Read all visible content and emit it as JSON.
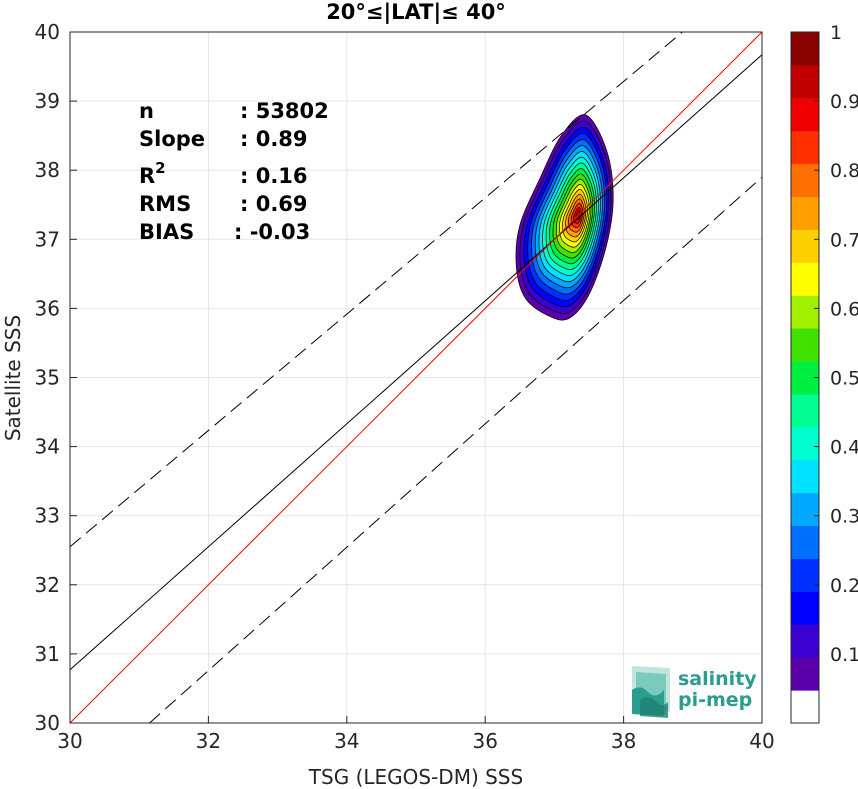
{
  "chart_data": {
    "type": "contour-scatter",
    "title": "20°≤|LAT|≤ 40°",
    "xlabel": "TSG (LEGOS-DM) SSS",
    "ylabel": "Satellite SSS",
    "xlim": [
      30,
      40
    ],
    "ylim": [
      30,
      40
    ],
    "xticks": [
      "30",
      "32",
      "34",
      "36",
      "38",
      "40"
    ],
    "yticks": [
      "30",
      "31",
      "32",
      "33",
      "34",
      "35",
      "36",
      "37",
      "38",
      "39",
      "40"
    ],
    "grid": true,
    "stats": [
      {
        "label": "n",
        "value": ": 53802"
      },
      {
        "label": "Slope",
        "value": ": 0.89"
      },
      {
        "label": "R",
        "sup": "2",
        "value": ": 0.16"
      },
      {
        "label": "RMS",
        "value": ": 0.69"
      },
      {
        "label": "BIAS",
        "value": ": -0.03"
      }
    ],
    "reference_lines": {
      "identity": {
        "x": [
          30,
          40
        ],
        "y": [
          30,
          40
        ],
        "color": "#ff0000"
      },
      "regression": {
        "x": [
          30,
          40
        ],
        "y": [
          30.77,
          39.67
        ],
        "color": "#000000"
      },
      "upper_bound": {
        "x": [
          30,
          38.85
        ],
        "y": [
          32.55,
          40
        ],
        "style": "dashed"
      },
      "lower_bound": {
        "x": [
          31.15,
          40
        ],
        "y": [
          30,
          37.9
        ],
        "style": "dashed"
      }
    },
    "density": {
      "center_x": 37.35,
      "center_y": 37.35,
      "levels": [
        0.05,
        0.1,
        0.15,
        0.2,
        0.25,
        0.3,
        0.35,
        0.4,
        0.45,
        0.5,
        0.55,
        0.6,
        0.65,
        0.7,
        0.75,
        0.8,
        0.85,
        0.9,
        0.95
      ],
      "outer_contour_x": [
        37.45,
        37.75,
        37.85,
        37.75,
        37.5,
        37.2,
        36.9,
        36.58,
        36.45,
        36.5,
        36.8,
        37.1,
        37.35
      ],
      "outer_contour_y": [
        38.8,
        38.3,
        37.6,
        36.9,
        36.2,
        35.85,
        35.9,
        36.15,
        36.6,
        37.2,
        37.9,
        38.5,
        38.8
      ]
    },
    "colorbar": {
      "ticks": [
        "0.1",
        "0.2",
        "0.3",
        "0.4",
        "0.5",
        "0.6",
        "0.7",
        "0.8",
        "0.9",
        "1"
      ],
      "range": [
        0,
        1
      ],
      "colors": [
        "#ffffff",
        "#5a00a8",
        "#3a00d0",
        "#0000ff",
        "#0030ff",
        "#0070ff",
        "#00a8ff",
        "#00e0ff",
        "#00ffd0",
        "#00ff90",
        "#00ee40",
        "#40e000",
        "#a0f000",
        "#ffff00",
        "#ffd000",
        "#ffa000",
        "#ff7000",
        "#ff3000",
        "#ee0000",
        "#c00000",
        "#880000"
      ]
    }
  },
  "logo": {
    "line1": "salinity",
    "line2": "pi-mep"
  }
}
